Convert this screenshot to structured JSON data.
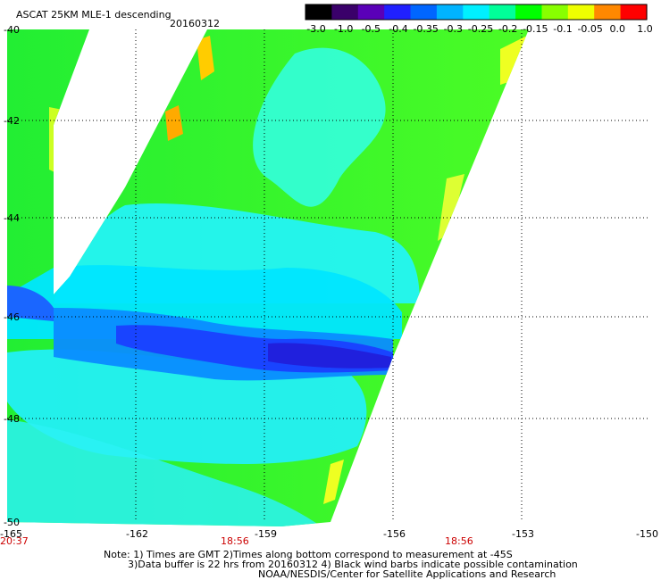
{
  "header": {
    "title": "ASCAT 25KM MLE-1 descending",
    "date": "20160312"
  },
  "colorbar": {
    "labels": [
      "-3.0",
      "-1.0",
      "-0.5",
      "-0.4",
      "-0.35",
      "-0.3",
      "-0.25",
      "-0.2",
      "-0.15",
      "-0.1",
      "-0.05",
      "0.0",
      "1.0"
    ],
    "colors": [
      "#000000",
      "#3a006a",
      "#5a00b8",
      "#2020ff",
      "#0066ff",
      "#00b4ff",
      "#00f0ff",
      "#00ff99",
      "#00ff00",
      "#88ff00",
      "#eeff00",
      "#ff8800",
      "#ff0000"
    ]
  },
  "axes": {
    "lat_labels": [
      "-40",
      "-42",
      "-44",
      "-46",
      "-48",
      "-50"
    ],
    "lon_labels": [
      "-165",
      "-162",
      "-159",
      "-156",
      "-153",
      "-150"
    ],
    "time_labels": [
      "20:37",
      "18:56",
      "18:56"
    ]
  },
  "notes": {
    "line1": "Note: 1) Times are GMT 2)Times along bottom correspond to measurement at -45S",
    "line2": "3)Data buffer is 22 hrs from 20160312 4) Black wind barbs indicate possible contamination",
    "line3": "NOAA/NESDIS/Center for Satellite Applications and Research"
  }
}
